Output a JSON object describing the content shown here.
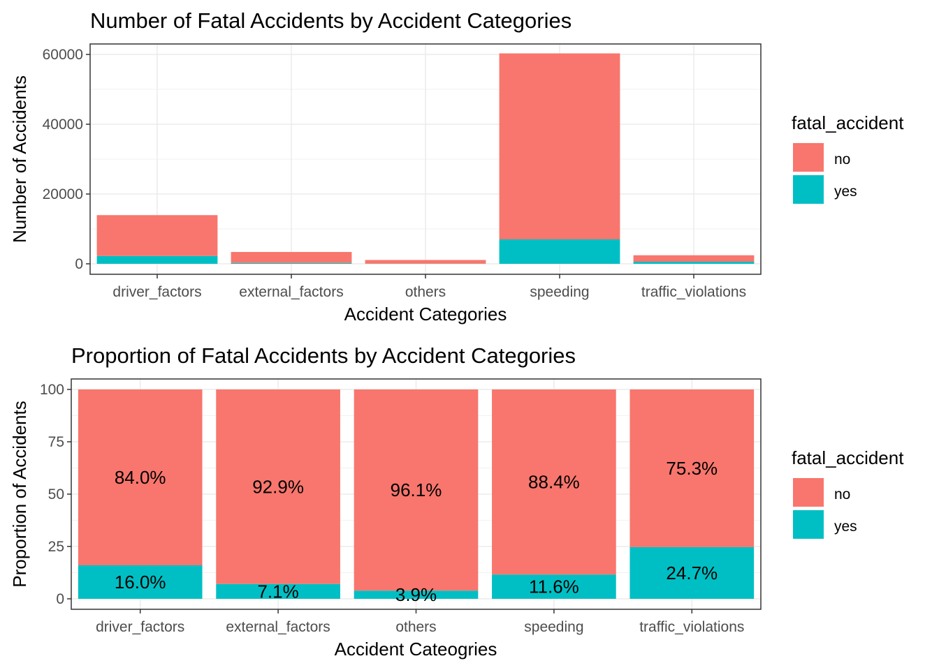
{
  "legend": {
    "title": "fatal_accident",
    "items": [
      {
        "label": "no",
        "color": "#F8766D"
      },
      {
        "label": "yes",
        "color": "#00BFC4"
      }
    ]
  },
  "chart_data": [
    {
      "type": "bar",
      "stacked": true,
      "title": "Number of Fatal Accidents by Accident Categories",
      "xlabel": "Accident Categories",
      "ylabel": "Number of Accidents",
      "categories": [
        "driver_factors",
        "external_factors",
        "others",
        "speeding",
        "traffic_violations"
      ],
      "series": [
        {
          "name": "no",
          "color": "#F8766D",
          "values": [
            11700,
            3150,
            1050,
            53300,
            1850
          ]
        },
        {
          "name": "yes",
          "color": "#00BFC4",
          "values": [
            2250,
            240,
            45,
            7000,
            600
          ]
        }
      ],
      "ylim": [
        -3000,
        63000
      ],
      "yticks": [
        0,
        20000,
        40000,
        60000
      ],
      "ytick_labels": [
        "0",
        "20000",
        "40000",
        "60000"
      ],
      "grid": true,
      "legend_position": "right"
    },
    {
      "type": "bar",
      "stacked": true,
      "title": "Proportion of Fatal Accidents by Accident Categories",
      "xlabel": "Accident Cateogries",
      "ylabel": "Proportion of Accidents",
      "categories": [
        "driver_factors",
        "external_factors",
        "others",
        "speeding",
        "traffic_violations"
      ],
      "series": [
        {
          "name": "no",
          "color": "#F8766D",
          "values": [
            84.0,
            92.9,
            96.1,
            88.4,
            75.3
          ],
          "labels": [
            "84.0%",
            "92.9%",
            "96.1%",
            "88.4%",
            "75.3%"
          ]
        },
        {
          "name": "yes",
          "color": "#00BFC4",
          "values": [
            16.0,
            7.1,
            3.9,
            11.6,
            24.7
          ],
          "labels": [
            "16.0%",
            "7.1%",
            "3.9%",
            "11.6%",
            "24.7%"
          ]
        }
      ],
      "ylim": [
        -5,
        105
      ],
      "yticks": [
        0,
        25,
        50,
        75,
        100
      ],
      "ytick_labels": [
        "0",
        "25",
        "50",
        "75",
        "100"
      ],
      "grid": true,
      "legend_position": "right"
    }
  ]
}
